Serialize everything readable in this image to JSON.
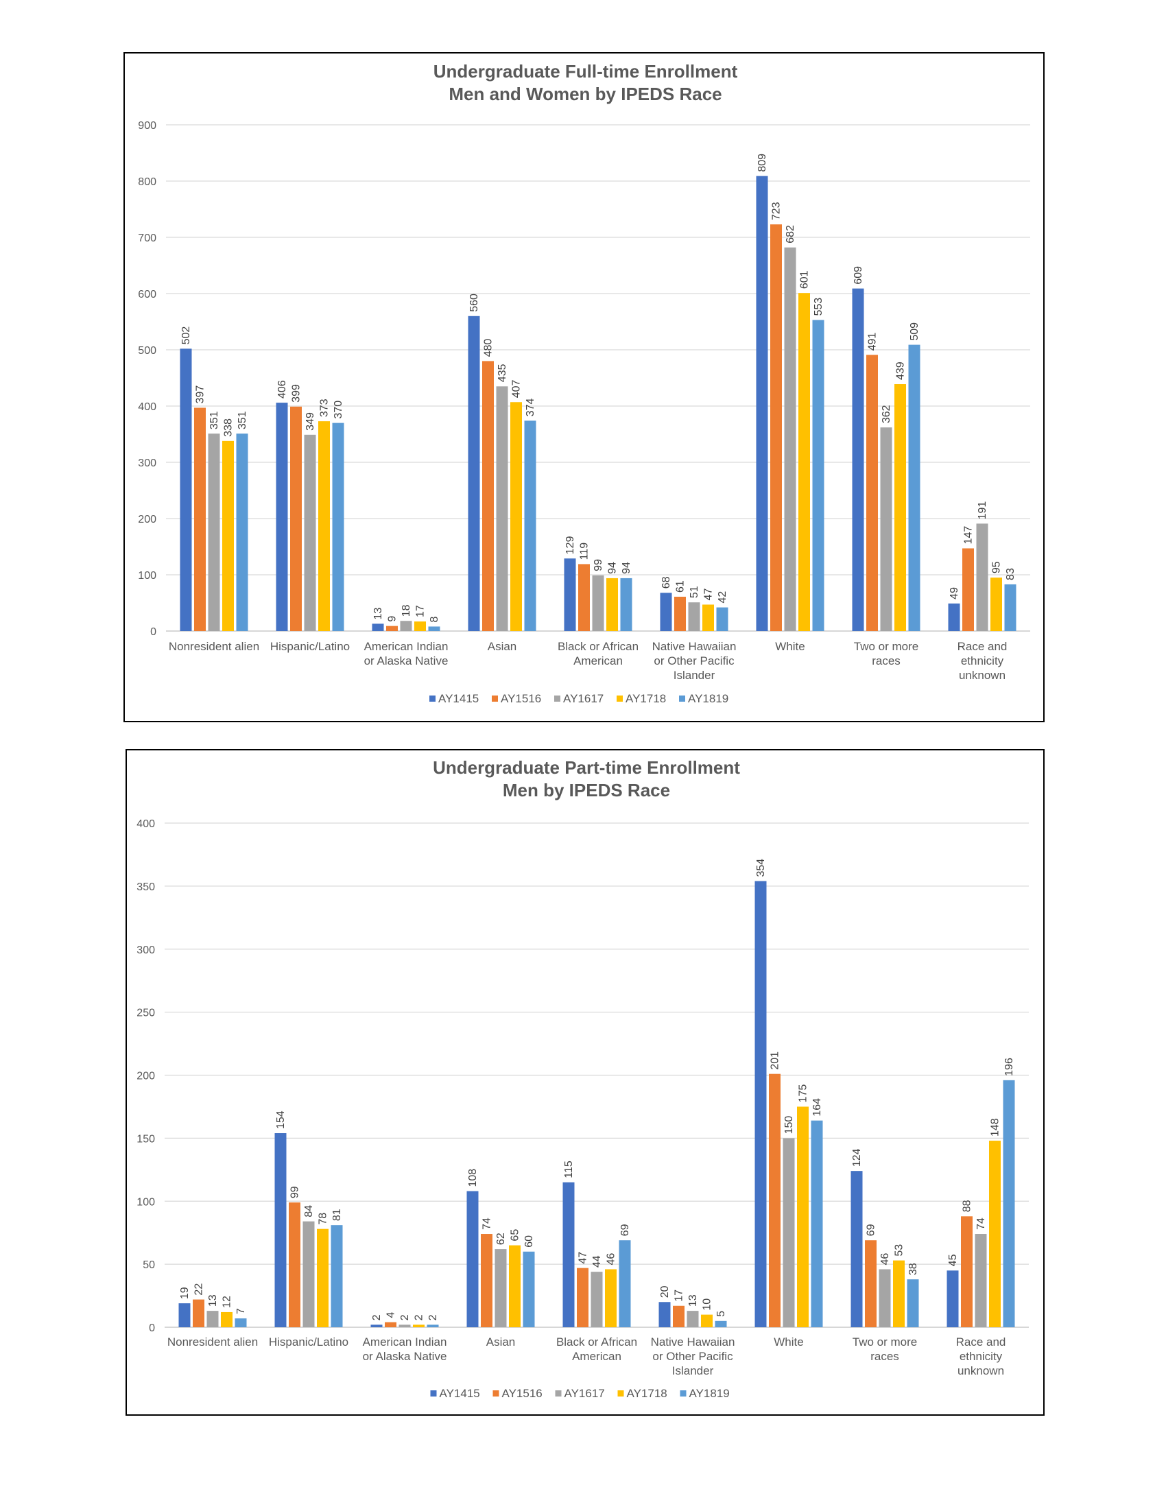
{
  "colors": {
    "AY1415": "#4472C4",
    "AY1516": "#ED7D31",
    "AY1617": "#A5A5A5",
    "AY1718": "#FFC000",
    "AY1819": "#5B9BD5",
    "gridline": "#D9D9D9",
    "text": "#595959"
  },
  "chart_data": [
    {
      "type": "bar",
      "title": [
        "Undergraduate Full-time Enrollment",
        "Men and Women by IPEDS Race"
      ],
      "categories": [
        [
          "Nonresident alien"
        ],
        [
          "Hispanic/Latino"
        ],
        [
          "American Indian",
          "or Alaska Native"
        ],
        [
          "Asian"
        ],
        [
          "Black or African",
          "American"
        ],
        [
          "Native Hawaiian",
          "or Other Pacific",
          "Islander"
        ],
        [
          "White"
        ],
        [
          "Two or more",
          "races"
        ],
        [
          "Race and",
          "ethnicity",
          "unknown"
        ]
      ],
      "series": [
        {
          "name": "AY1415",
          "values": [
            502,
            406,
            13,
            560,
            129,
            68,
            809,
            609,
            49
          ]
        },
        {
          "name": "AY1516",
          "values": [
            397,
            399,
            9,
            480,
            119,
            61,
            723,
            491,
            147
          ]
        },
        {
          "name": "AY1617",
          "values": [
            351,
            349,
            18,
            435,
            99,
            51,
            682,
            362,
            191
          ]
        },
        {
          "name": "AY1718",
          "values": [
            338,
            373,
            17,
            407,
            94,
            47,
            601,
            439,
            95
          ]
        },
        {
          "name": "AY1819",
          "values": [
            351,
            370,
            8,
            374,
            94,
            42,
            553,
            509,
            83
          ]
        }
      ],
      "ylim": [
        0,
        900
      ],
      "yticks": [
        0,
        100,
        200,
        300,
        400,
        500,
        600,
        700,
        800,
        900
      ],
      "grid": true,
      "legend": "bottom"
    },
    {
      "type": "bar",
      "title": [
        "Undergraduate Part-time Enrollment",
        "Men by IPEDS Race"
      ],
      "categories": [
        [
          "Nonresident alien"
        ],
        [
          "Hispanic/Latino"
        ],
        [
          "American Indian",
          "or Alaska Native"
        ],
        [
          "Asian"
        ],
        [
          "Black or African",
          "American"
        ],
        [
          "Native Hawaiian",
          "or Other Pacific",
          "Islander"
        ],
        [
          "White"
        ],
        [
          "Two or more",
          "races"
        ],
        [
          "Race and",
          "ethnicity",
          "unknown"
        ]
      ],
      "series": [
        {
          "name": "AY1415",
          "values": [
            19,
            154,
            2,
            108,
            115,
            20,
            354,
            124,
            45
          ]
        },
        {
          "name": "AY1516",
          "values": [
            22,
            99,
            4,
            74,
            47,
            17,
            201,
            69,
            88
          ]
        },
        {
          "name": "AY1617",
          "values": [
            13,
            84,
            2,
            62,
            44,
            13,
            150,
            46,
            74
          ]
        },
        {
          "name": "AY1718",
          "values": [
            12,
            78,
            2,
            65,
            46,
            10,
            175,
            53,
            148
          ]
        },
        {
          "name": "AY1819",
          "values": [
            7,
            81,
            2,
            60,
            69,
            5,
            164,
            38,
            196
          ]
        }
      ],
      "ylim": [
        0,
        400
      ],
      "yticks": [
        0,
        50,
        100,
        150,
        200,
        250,
        300,
        350,
        400
      ],
      "grid": true,
      "legend": "bottom"
    }
  ]
}
